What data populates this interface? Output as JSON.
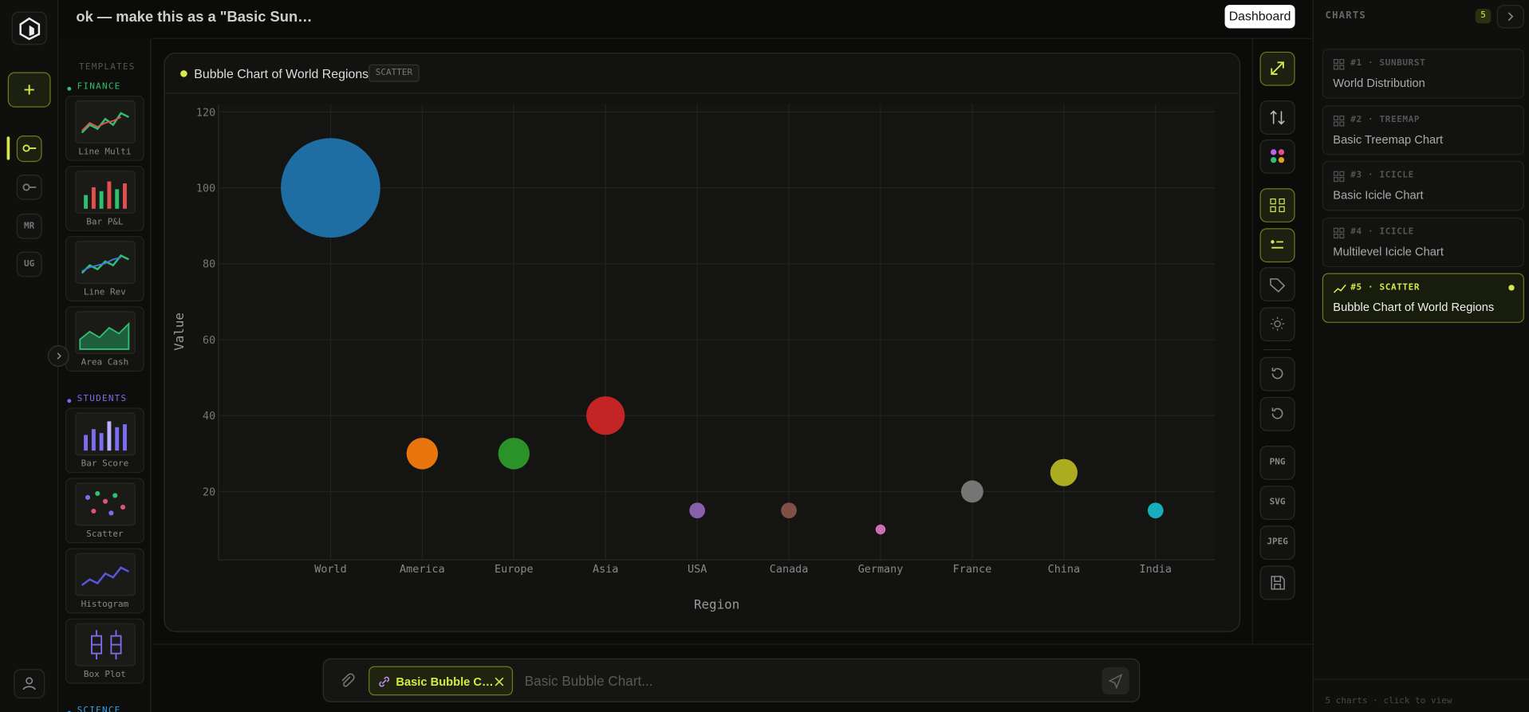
{
  "header": {
    "title": "ok — make this as a \"Basic Sun…",
    "button": "Dashboard"
  },
  "nav": [
    "MR",
    "UG"
  ],
  "templates": {
    "label": "TEMPLATES",
    "groups": [
      {
        "name": "FINANCE",
        "color": "#2fbf71",
        "items": [
          "Line Multi",
          "Bar P&L",
          "Line Rev",
          "Area Cash"
        ]
      },
      {
        "name": "STUDENTS",
        "color": "#7c6cf0",
        "items": [
          "Bar Score",
          "Scatter",
          "Histogram",
          "Box Plot"
        ]
      },
      {
        "name": "SCIENCE",
        "color": "#3aa0e8"
      }
    ]
  },
  "card": {
    "badge": "SCATTER"
  },
  "chart_data": {
    "type": "scatter",
    "title": "Bubble Chart of World Regions",
    "x_label": "Region",
    "y_label": "Value",
    "categories": [
      "World",
      "America",
      "Europe",
      "Asia",
      "USA",
      "Canada",
      "Germany",
      "France",
      "China",
      "India"
    ],
    "values": [
      100,
      30,
      30,
      40,
      15,
      15,
      10,
      20,
      25,
      15
    ],
    "sizes": [
      100,
      10,
      10,
      15,
      2.5,
      2.5,
      1,
      5,
      7.5,
      2.5
    ],
    "colors": [
      "#1f77b4",
      "#ff7f0e",
      "#2ca02c",
      "#d62728",
      "#9467bd",
      "#8c564b",
      "#e377c2",
      "#7f7f7f",
      "#bcbd22",
      "#17becf"
    ],
    "ylim": [
      2,
      122
    ],
    "yticks": [
      20,
      40,
      60,
      80,
      100,
      120
    ],
    "grid": true
  },
  "toolbar": {
    "exports": [
      "PNG",
      "SVG",
      "JPEG"
    ]
  },
  "charts_panel": {
    "title": "CHARTS",
    "count": "5",
    "items": [
      {
        "tag": "#1 · SUNBURST",
        "name": "World Distribution"
      },
      {
        "tag": "#2 · TREEMAP",
        "name": "Basic Treemap Chart"
      },
      {
        "tag": "#3 · ICICLE",
        "name": "Basic Icicle Chart"
      },
      {
        "tag": "#4 · ICICLE",
        "name": "Multilevel Icicle Chart"
      },
      {
        "tag": "#5 · SCATTER",
        "name": "Bubble Chart of World Regions"
      }
    ],
    "active": 4,
    "footer": "5 charts · click to view"
  },
  "composer": {
    "chip": "Basic Bubble C…",
    "placeholder": "Basic Bubble Chart..."
  }
}
